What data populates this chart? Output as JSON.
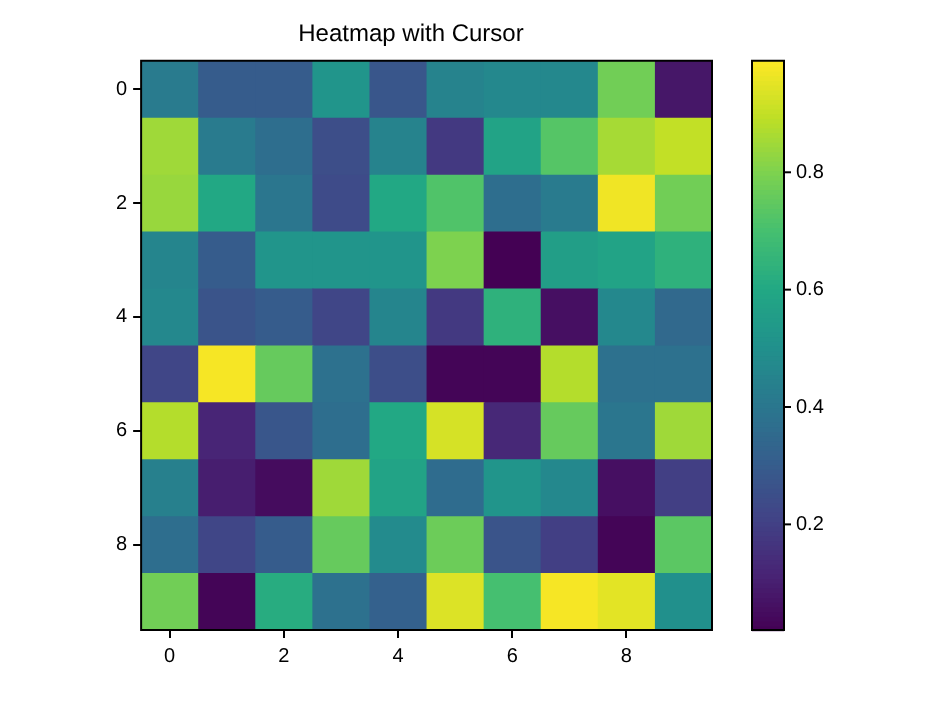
{
  "chart_data": {
    "type": "heatmap",
    "title": "Heatmap with Cursor",
    "categories": [
      "0",
      null,
      "2",
      null,
      "4",
      null,
      "6",
      null,
      "8",
      null
    ],
    "y_categories": [
      "0",
      null,
      "2",
      null,
      "4",
      null,
      "6",
      null,
      "8",
      null
    ],
    "cells": [
      [
        0.42,
        0.3,
        0.3,
        0.52,
        0.28,
        0.45,
        0.47,
        0.47,
        0.78,
        0.08
      ],
      [
        0.85,
        0.42,
        0.37,
        0.25,
        0.45,
        0.18,
        0.58,
        0.73,
        0.86,
        0.9
      ],
      [
        0.84,
        0.6,
        0.4,
        0.24,
        0.6,
        0.72,
        0.37,
        0.42,
        0.97,
        0.78
      ],
      [
        0.46,
        0.3,
        0.52,
        0.52,
        0.52,
        0.8,
        0.02,
        0.56,
        0.58,
        0.64
      ],
      [
        0.47,
        0.27,
        0.3,
        0.22,
        0.46,
        0.18,
        0.64,
        0.06,
        0.47,
        0.35
      ],
      [
        0.22,
        0.98,
        0.76,
        0.38,
        0.25,
        0.03,
        0.03,
        0.88,
        0.38,
        0.38
      ],
      [
        0.88,
        0.12,
        0.28,
        0.37,
        0.6,
        0.93,
        0.13,
        0.76,
        0.4,
        0.85
      ],
      [
        0.44,
        0.1,
        0.05,
        0.85,
        0.58,
        0.36,
        0.52,
        0.47,
        0.06,
        0.2
      ],
      [
        0.37,
        0.22,
        0.3,
        0.76,
        0.48,
        0.77,
        0.27,
        0.2,
        0.03,
        0.74
      ],
      [
        0.78,
        0.03,
        0.62,
        0.38,
        0.32,
        0.94,
        0.7,
        0.98,
        0.95,
        0.5
      ]
    ],
    "clim": [
      0.02,
      0.99
    ],
    "cticks": [
      0.2,
      0.4,
      0.6,
      0.8
    ]
  }
}
